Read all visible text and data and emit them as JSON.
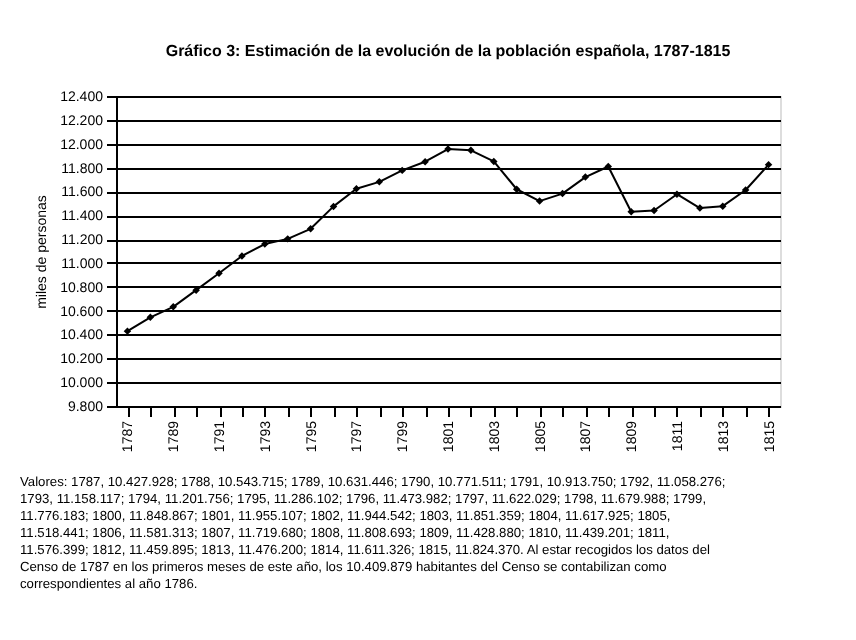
{
  "chart_data": {
    "type": "line",
    "title": "Gráfico 3: Estimación de la evolución de la población española, 1787-1815",
    "ylabel": "miles de personas",
    "categories": [
      "1787",
      null,
      "1789",
      null,
      "1791",
      null,
      "1793",
      null,
      "1795",
      null,
      "1797",
      null,
      "1799",
      null,
      "1801",
      null,
      "1803",
      null,
      "1805",
      null,
      "1807",
      null,
      "1809",
      null,
      "1811",
      null,
      "1813",
      null,
      "1815"
    ],
    "series": [
      {
        "color": "#000000",
        "values": [
          10427.928,
          10543.715,
          10631.446,
          10771.511,
          10913.75,
          11058.276,
          11158.117,
          11201.756,
          11286.102,
          11473.982,
          11622.029,
          11679.988,
          11776.183,
          11848.867,
          11955.107,
          11944.542,
          11851.359,
          11617.925,
          11518.441,
          11581.313,
          11719.68,
          11808.693,
          11428.88,
          11439.201,
          11576.399,
          11459.895,
          11476.2,
          11611.326,
          11824.37
        ]
      }
    ],
    "ylim": [
      9800,
      12400
    ],
    "yticks": [
      {
        "value": 9800,
        "label": "9.800"
      },
      {
        "value": 10000,
        "label": "10.000"
      },
      {
        "value": 10200,
        "label": "10.200"
      },
      {
        "value": 10400,
        "label": "10.400"
      },
      {
        "value": 10600,
        "label": "10.600"
      },
      {
        "value": 10800,
        "label": "10.800"
      },
      {
        "value": 11000,
        "label": "11.000"
      },
      {
        "value": 11200,
        "label": "11.200"
      },
      {
        "value": 11400,
        "label": "11.400"
      },
      {
        "value": 11600,
        "label": "11.600"
      },
      {
        "value": 11800,
        "label": "11.800"
      },
      {
        "value": 12000,
        "label": "12.000"
      },
      {
        "value": 12200,
        "label": "12.200"
      },
      {
        "value": 12400,
        "label": "12.400"
      }
    ],
    "grid": "y",
    "marker": "diamond",
    "line_style": "solid",
    "annotations": [
      "Valores: 1787, 10.427.928; 1788, 10.543.715; 1789, 10.631.446; 1790, 10.771.511; 1791, 10.913.750; 1792, 11.058.276; 1793, 11.158.117; 1794, 11.201.756; 1795, 11.286.102; 1796, 11.473.982; 1797, 11.622.029; 1798, 11.679.988; 1799, 11.776.183; 1800, 11.848.867; 1801, 11.955.107; 1802, 11.944.542; 1803, 11.851.359; 1804, 11.617.925; 1805, 11.518.441; 1806, 11.581.313; 1807, 11.719.680; 1808, 11.808.693; 1809, 11.428.880; 1810, 11.439.201; 1811, 11.576.399; 1812, 11.459.895; 1813, 11.476.200; 1814, 11.611.326; 1815, 11.824.370. Al estar recogidos los datos del Censo de 1787 en los primeros meses de este año, los 10.409.879 habitantes del Censo se contabilizan como correspondientes al año 1786."
    ]
  }
}
